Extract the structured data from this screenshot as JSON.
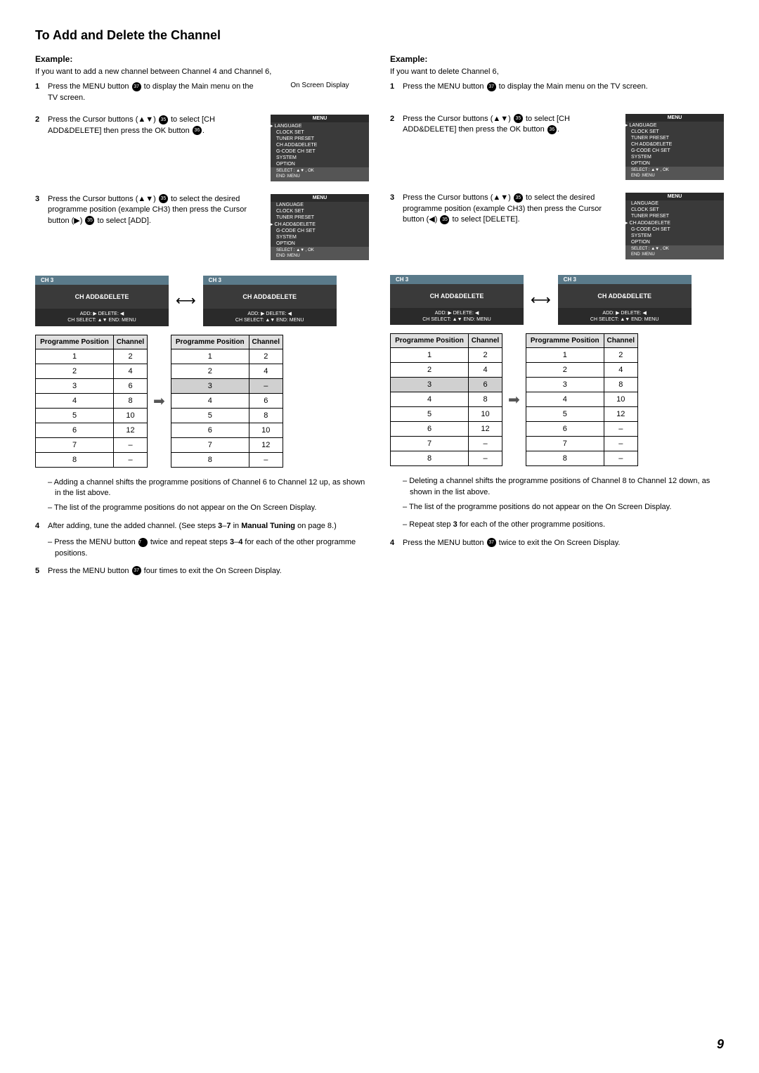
{
  "title": "To Add and Delete the Channel",
  "pageNumber": "9",
  "left": {
    "exampleHeading": "Example:",
    "exampleIntro": "If you want to add a new channel between Channel 4 and Channel 6,",
    "osdLabel": "On Screen Display",
    "step1": {
      "num": "1",
      "text": "Press the MENU button ",
      "icon": "37",
      "text2": " to display the Main menu on the TV screen."
    },
    "step2": {
      "num": "2",
      "text": "Press the Cursor buttons (▲▼) ",
      "icon": "35",
      "text2": " to select [CH ADD&DELETE] then press the OK button ",
      "icon2": "36",
      "text3": "."
    },
    "step3": {
      "num": "3",
      "text": "Press the Cursor buttons (▲▼) ",
      "icon": "35",
      "text2": " to select the desired programme position (example CH3) then press the Cursor button (▶) ",
      "icon2": "35",
      "text3": " to select [ADD]."
    },
    "osd1": {
      "title": "MENU",
      "items": [
        "LANGUAGE",
        "CLOCK SET",
        "TUNER PRESET",
        "CH ADD&DELETE",
        "G-CODE CH SET",
        "SYSTEM",
        "OPTION"
      ],
      "selected": 0,
      "footer": "SELECT : ▲▼ , OK\nEND        :MENU"
    },
    "osd2": {
      "title": "MENU",
      "items": [
        "LANGUAGE",
        "CLOCK SET",
        "TUNER PRESET",
        "CH ADD&DELETE",
        "G-CODE CH SET",
        "SYSTEM",
        "OPTION"
      ],
      "selected": 3,
      "footer": "SELECT : ▲▼ , OK\nEND        :MENU"
    },
    "chBox": {
      "top": "CH 3",
      "mid": "CH ADD&DELETE",
      "bot": "ADD: ▶    DELETE: ◀\nCH SELECT: ▲▼    END: MENU"
    },
    "tableHeaders": [
      "Programme Position",
      "Channel"
    ],
    "tableBefore": [
      [
        "1",
        "2"
      ],
      [
        "2",
        "4"
      ],
      [
        "3",
        "6"
      ],
      [
        "4",
        "8"
      ],
      [
        "5",
        "10"
      ],
      [
        "6",
        "12"
      ],
      [
        "7",
        "–"
      ],
      [
        "8",
        "–"
      ]
    ],
    "tableAfter": [
      [
        "1",
        "2"
      ],
      [
        "2",
        "4"
      ],
      [
        "3",
        "–"
      ],
      [
        "4",
        "6"
      ],
      [
        "5",
        "8"
      ],
      [
        "6",
        "10"
      ],
      [
        "7",
        "12"
      ],
      [
        "8",
        "–"
      ]
    ],
    "highlightAfter": 2,
    "notes": [
      "Adding a channel shifts the programme positions of Channel 6 to Channel 12 up, as shown in the list above.",
      "The list of the programme positions do not appear on the On Screen Display."
    ],
    "step4": {
      "num": "4",
      "pre": "After adding, tune the added channel. (See steps ",
      "bold1": "3",
      "mid": "–",
      "bold2": "7",
      "post": " in ",
      "bold3": "Manual Tuning",
      "post2": " on page 8.)"
    },
    "step4notes": [
      {
        "pre": "Press the MENU button ",
        "icon": "37",
        "mid": " twice and repeat steps ",
        "bold1": "3",
        "dash": "–",
        "bold2": "4",
        "post": " for each of the other programme positions."
      }
    ],
    "step5": {
      "num": "5",
      "pre": "Press the MENU button ",
      "icon": "37",
      "post": " four times to exit the On Screen Display."
    }
  },
  "right": {
    "exampleHeading": "Example:",
    "exampleIntro": "If you want to delete Channel 6,",
    "step1": {
      "num": "1",
      "text": "Press the MENU button ",
      "icon": "37",
      "text2": " to display the Main menu on the TV screen."
    },
    "step2": {
      "num": "2",
      "text": "Press the Cursor buttons (▲▼) ",
      "icon": "35",
      "text2": " to select [CH ADD&DELETE] then press the OK button ",
      "icon2": "36",
      "text3": "."
    },
    "step3": {
      "num": "3",
      "text": "Press the Cursor buttons (▲▼) ",
      "icon": "35",
      "text2": " to select the desired programme position (example CH3) then press the Cursor button (◀) ",
      "icon2": "35",
      "text3": " to select [DELETE]."
    },
    "osd1": {
      "title": "MENU",
      "items": [
        "LANGUAGE",
        "CLOCK SET",
        "TUNER PRESET",
        "CH ADD&DELETE",
        "G-CODE CH SET",
        "SYSTEM",
        "OPTION"
      ],
      "selected": 0,
      "footer": "SELECT : ▲▼ , OK\nEND        :MENU"
    },
    "osd2": {
      "title": "MENU",
      "items": [
        "LANGUAGE",
        "CLOCK SET",
        "TUNER PRESET",
        "CH ADD&DELETE",
        "G-CODE CH SET",
        "SYSTEM",
        "OPTION"
      ],
      "selected": 3,
      "footer": "SELECT : ▲▼ , OK\nEND        :MENU"
    },
    "chBox": {
      "top": "CH 3",
      "mid": "CH ADD&DELETE",
      "bot": "ADD: ▶    DELETE: ◀\nCH SELECT: ▲▼    END: MENU"
    },
    "tableHeaders": [
      "Programme Position",
      "Channel"
    ],
    "tableBefore": [
      [
        "1",
        "2"
      ],
      [
        "2",
        "4"
      ],
      [
        "3",
        "6"
      ],
      [
        "4",
        "8"
      ],
      [
        "5",
        "10"
      ],
      [
        "6",
        "12"
      ],
      [
        "7",
        "–"
      ],
      [
        "8",
        "–"
      ]
    ],
    "tableAfter": [
      [
        "1",
        "2"
      ],
      [
        "2",
        "4"
      ],
      [
        "3",
        "8"
      ],
      [
        "4",
        "10"
      ],
      [
        "5",
        "12"
      ],
      [
        "6",
        "–"
      ],
      [
        "7",
        "–"
      ],
      [
        "8",
        "–"
      ]
    ],
    "highlightBefore": 2,
    "notes": [
      "Deleting a channel shifts the programme positions of Channel 8 to Channel 12 down, as shown in the list above.",
      "The list of the programme positions do not appear on the On Screen Display."
    ],
    "notes2": [
      {
        "pre": "Repeat step ",
        "bold": "3",
        "post": " for each of the other programme positions."
      }
    ],
    "step4": {
      "num": "4",
      "pre": "Press the MENU button ",
      "icon": "37",
      "post": " twice to exit the On Screen Display."
    }
  }
}
